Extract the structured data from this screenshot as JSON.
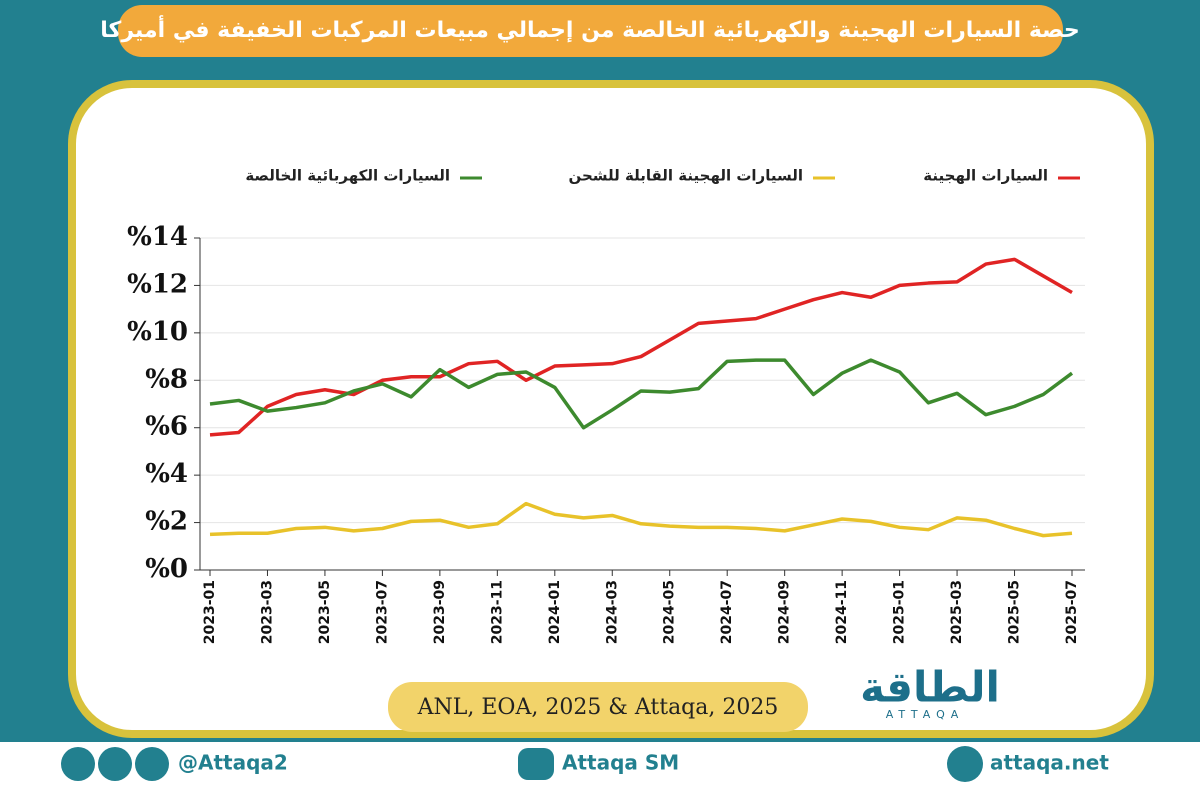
{
  "chart_data": {
    "type": "line",
    "title": "حصة السيارات الهجينة والكهربائية الخالصة من إجمالي مبيعات المركبات الخفيفة في أميركا",
    "categories": [
      "2023-01",
      null,
      "2023-03",
      null,
      "2023-05",
      null,
      "2023-07",
      null,
      "2023-09",
      null,
      "2023-11",
      null,
      "2024-01",
      null,
      "2024-03",
      null,
      "2024-05",
      null,
      "2024-07",
      null,
      "2024-09",
      null,
      "2024-11",
      null,
      "2025-01",
      null,
      "2025-03",
      null,
      "2025-05",
      null,
      "2025-07"
    ],
    "series": [
      {
        "name": "السيارات الهجينة",
        "color": "#e02424",
        "values": [
          5.7,
          5.8,
          6.9,
          7.4,
          7.6,
          7.4,
          8.0,
          8.15,
          8.15,
          8.7,
          8.8,
          8.0,
          8.6,
          8.65,
          8.7,
          9.0,
          9.7,
          10.4,
          10.5,
          10.6,
          11.0,
          11.4,
          11.7,
          11.5,
          12.0,
          12.1,
          12.15,
          12.9,
          13.1,
          12.4,
          11.7
        ]
      },
      {
        "name": "السيارات الهجينة القابلة للشحن",
        "color": "#e8c22a",
        "values": [
          1.5,
          1.55,
          1.55,
          1.75,
          1.8,
          1.65,
          1.75,
          2.05,
          2.1,
          1.8,
          1.95,
          2.8,
          2.35,
          2.2,
          2.3,
          1.95,
          1.85,
          1.8,
          1.8,
          1.75,
          1.65,
          1.9,
          2.15,
          2.05,
          1.8,
          1.7,
          2.2,
          2.1,
          1.75,
          1.45,
          1.55
        ]
      },
      {
        "name": "السيارات الكهربائية الخالصة",
        "color": "#3d8a2e",
        "values": [
          7.0,
          7.15,
          6.7,
          6.85,
          7.05,
          7.55,
          7.85,
          7.3,
          8.45,
          7.7,
          8.25,
          8.35,
          7.7,
          6.0,
          6.75,
          7.55,
          7.5,
          7.65,
          8.8,
          8.85,
          8.85,
          7.4,
          8.3,
          8.85,
          8.35,
          7.05,
          7.45,
          6.55,
          6.9,
          7.4,
          8.3
        ]
      }
    ],
    "ylim": [
      0,
      14
    ],
    "yticks": [
      {
        "value": 0,
        "label": "%0"
      },
      {
        "value": 2,
        "label": "%2"
      },
      {
        "value": 4,
        "label": "%4"
      },
      {
        "value": 6,
        "label": "%6"
      },
      {
        "value": 8,
        "label": "%8"
      },
      {
        "value": 10,
        "label": "%10"
      },
      {
        "value": 12,
        "label": "%12"
      },
      {
        "value": 14,
        "label": "%14"
      }
    ],
    "grid": true
  },
  "source": "ANL, EOA, 2025 & Attaqa, 2025",
  "logo": {
    "name": "الطاقة",
    "latin": "ATTAQA"
  },
  "footer": {
    "handle": "@Attaqa2",
    "youtube": "Attaqa SM",
    "site": "attaqa.net"
  }
}
